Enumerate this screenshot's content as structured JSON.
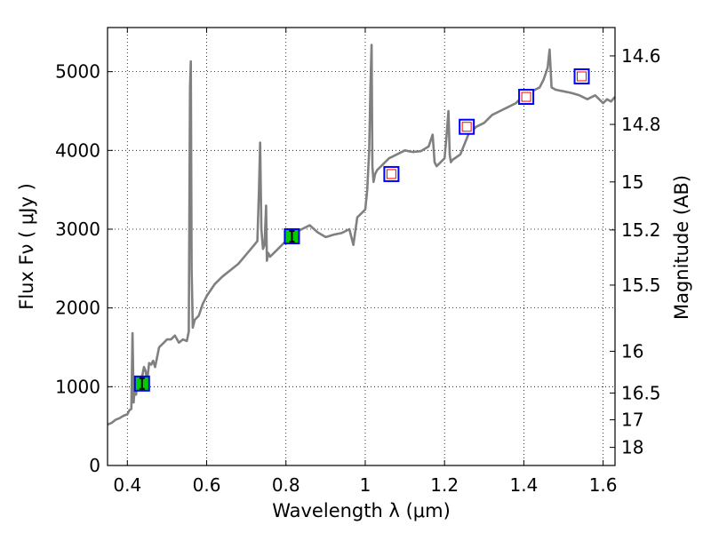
{
  "chart_data": {
    "type": "line",
    "title": "",
    "xlabel": "Wavelength  λ (μm)",
    "ylabel": "Flux  Fν  ( μJy )",
    "y2label": "Magnitude (AB)",
    "xlim": [
      0.35,
      1.63
    ],
    "ylim": [
      0,
      5560
    ],
    "grid": true,
    "x_ticks": [
      0.4,
      0.6,
      0.8,
      1.0,
      1.2,
      1.4,
      1.6
    ],
    "x_tick_labels": [
      "0.4",
      "0.6",
      "0.8",
      "1",
      "1.2",
      "1.4",
      "1.6"
    ],
    "y_ticks": [
      0,
      1000,
      2000,
      3000,
      4000,
      5000
    ],
    "y_tick_labels": [
      "0",
      "1000",
      "2000",
      "3000",
      "4000",
      "5000"
    ],
    "y2_ticks": [
      {
        "label": "14.6",
        "flux": 5200
      },
      {
        "label": "14.8",
        "flux": 4330
      },
      {
        "label": "15",
        "flux": 3600
      },
      {
        "label": "15.2",
        "flux": 2990
      },
      {
        "label": "15.5",
        "flux": 2290
      },
      {
        "label": "16",
        "flux": 1450
      },
      {
        "label": "16.5",
        "flux": 920
      },
      {
        "label": "17",
        "flux": 580
      },
      {
        "label": "18",
        "flux": 230
      }
    ],
    "series": [
      {
        "type": "line",
        "color": "#808080",
        "x": [
          0.35,
          0.36,
          0.37,
          0.38,
          0.39,
          0.4,
          0.405,
          0.41,
          0.413,
          0.416,
          0.419,
          0.422,
          0.426,
          0.43,
          0.434,
          0.438,
          0.442,
          0.446,
          0.45,
          0.455,
          0.46,
          0.465,
          0.47,
          0.48,
          0.49,
          0.5,
          0.51,
          0.52,
          0.53,
          0.54,
          0.55,
          0.555,
          0.558,
          0.56,
          0.562,
          0.565,
          0.57,
          0.58,
          0.59,
          0.6,
          0.62,
          0.64,
          0.66,
          0.68,
          0.7,
          0.72,
          0.728,
          0.732,
          0.735,
          0.738,
          0.742,
          0.746,
          0.75,
          0.752,
          0.755,
          0.76,
          0.78,
          0.8,
          0.82,
          0.84,
          0.86,
          0.88,
          0.9,
          0.92,
          0.94,
          0.96,
          0.97,
          0.98,
          0.99,
          1.0,
          1.005,
          1.01,
          1.013,
          1.016,
          1.018,
          1.021,
          1.025,
          1.03,
          1.04,
          1.06,
          1.08,
          1.1,
          1.12,
          1.14,
          1.16,
          1.17,
          1.175,
          1.18,
          1.2,
          1.205,
          1.21,
          1.213,
          1.216,
          1.22,
          1.24,
          1.26,
          1.28,
          1.3,
          1.32,
          1.34,
          1.36,
          1.38,
          1.4,
          1.42,
          1.44,
          1.45,
          1.46,
          1.465,
          1.47,
          1.48,
          1.5,
          1.52,
          1.54,
          1.56,
          1.58,
          1.6,
          1.61,
          1.62,
          1.63
        ],
        "y": [
          520,
          540,
          580,
          600,
          630,
          650,
          700,
          720,
          1680,
          800,
          1040,
          900,
          1100,
          1000,
          1100,
          1150,
          1250,
          1200,
          1080,
          1300,
          1280,
          1330,
          1250,
          1500,
          1550,
          1600,
          1600,
          1650,
          1560,
          1600,
          1580,
          1700,
          4800,
          5130,
          2500,
          1750,
          1850,
          1900,
          2050,
          2150,
          2300,
          2400,
          2480,
          2560,
          2680,
          2800,
          2850,
          3500,
          4100,
          3000,
          2750,
          2800,
          3300,
          2600,
          2700,
          2650,
          2750,
          2850,
          2950,
          3000,
          3050,
          2960,
          2900,
          2930,
          2950,
          3000,
          2800,
          3150,
          3200,
          3250,
          3500,
          4000,
          4800,
          5340,
          3800,
          3600,
          3700,
          3750,
          3800,
          3900,
          3950,
          4000,
          3980,
          3990,
          4050,
          4200,
          3850,
          3800,
          3900,
          4180,
          4500,
          3950,
          3850,
          3880,
          3950,
          4200,
          4300,
          4350,
          4450,
          4500,
          4550,
          4600,
          4700,
          4750,
          4800,
          4900,
          5050,
          5280,
          4800,
          4770,
          4750,
          4730,
          4700,
          4650,
          4700,
          4600,
          4650,
          4620,
          4680
        ]
      },
      {
        "type": "markers",
        "name": "",
        "points": [
          {
            "x": 0.437,
            "y": 1040,
            "face": "#00cc00",
            "edge": "#0000ff",
            "errorbar": true
          },
          {
            "x": 0.815,
            "y": 2910,
            "face": "#00cc00",
            "edge": "#0000ff",
            "errorbar": true
          },
          {
            "x": 1.066,
            "y": 3700,
            "face": "#ffffff",
            "edge": "#0000ff",
            "inner": "#ff0000"
          },
          {
            "x": 1.256,
            "y": 4300,
            "face": "#ffffff",
            "edge": "#0000ff",
            "inner": "#ff0000"
          },
          {
            "x": 1.406,
            "y": 4680,
            "face": "#ffffff",
            "edge": "#0000ff",
            "inner": "#ff0000"
          },
          {
            "x": 1.546,
            "y": 4940,
            "face": "#ffffff",
            "edge": "#0000ff",
            "inner": "#ff0000"
          }
        ]
      }
    ]
  }
}
